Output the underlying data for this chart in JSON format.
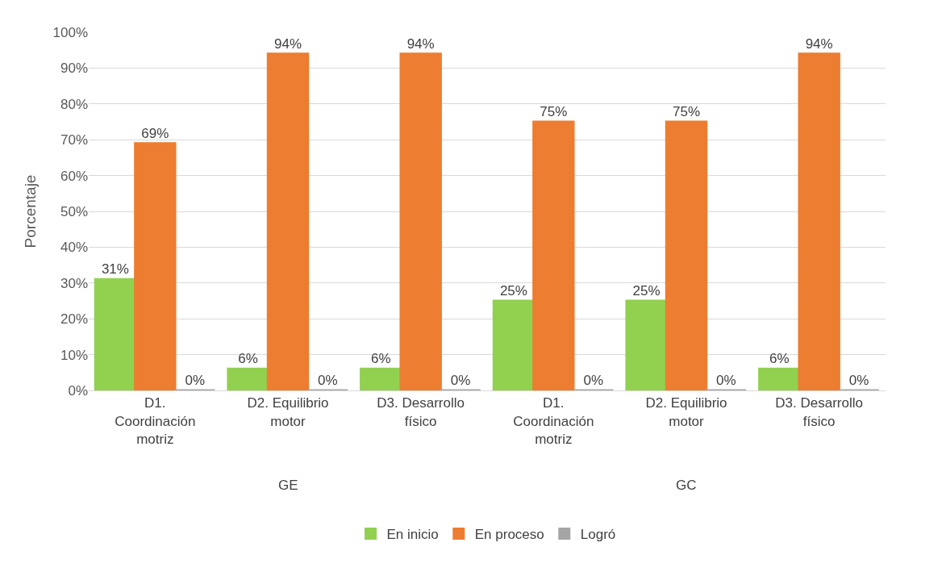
{
  "chart_data": {
    "type": "bar",
    "ylabel": "Porcentaje",
    "categories": [
      "D1. Coordinación motriz",
      "D2. Equilibrio motor",
      "D3. Desarrollo físico",
      "D1. Coordinación motriz",
      "D2. Equilibrio motor",
      "D3. Desarrollo físico"
    ],
    "series": [
      {
        "name": "En inicio",
        "color": "#92d050",
        "values": [
          31,
          6,
          6,
          25,
          25,
          6
        ],
        "value_labels": [
          "31%",
          "6%",
          "6%",
          "25%",
          "25%",
          "6%"
        ]
      },
      {
        "name": "En proceso",
        "color": "#ed7d31",
        "values": [
          69,
          94,
          94,
          75,
          75,
          94
        ],
        "value_labels": [
          "69%",
          "94%",
          "94%",
          "75%",
          "75%",
          "94%"
        ]
      },
      {
        "name": "Logró",
        "color": "#a5a5a5",
        "values": [
          0,
          0,
          0,
          0,
          0,
          0
        ],
        "value_labels": [
          "0%",
          "0%",
          "0%",
          "0%",
          "0%",
          "0%"
        ]
      }
    ],
    "annotations": [
      "GE",
      "GC"
    ],
    "ylim": [
      0,
      100
    ],
    "yticks": [
      {
        "value": 0,
        "label": "0%"
      },
      {
        "value": 10,
        "label": "10%"
      },
      {
        "value": 20,
        "label": "20%"
      },
      {
        "value": 30,
        "label": "30%"
      },
      {
        "value": 40,
        "label": "40%"
      },
      {
        "value": 50,
        "label": "50%"
      },
      {
        "value": 60,
        "label": "60%"
      },
      {
        "value": 70,
        "label": "70%"
      },
      {
        "value": 80,
        "label": "80%"
      },
      {
        "value": 90,
        "label": "90%"
      },
      {
        "value": 100,
        "label": "100%"
      }
    ],
    "grid": "y",
    "legend": "bottom"
  }
}
